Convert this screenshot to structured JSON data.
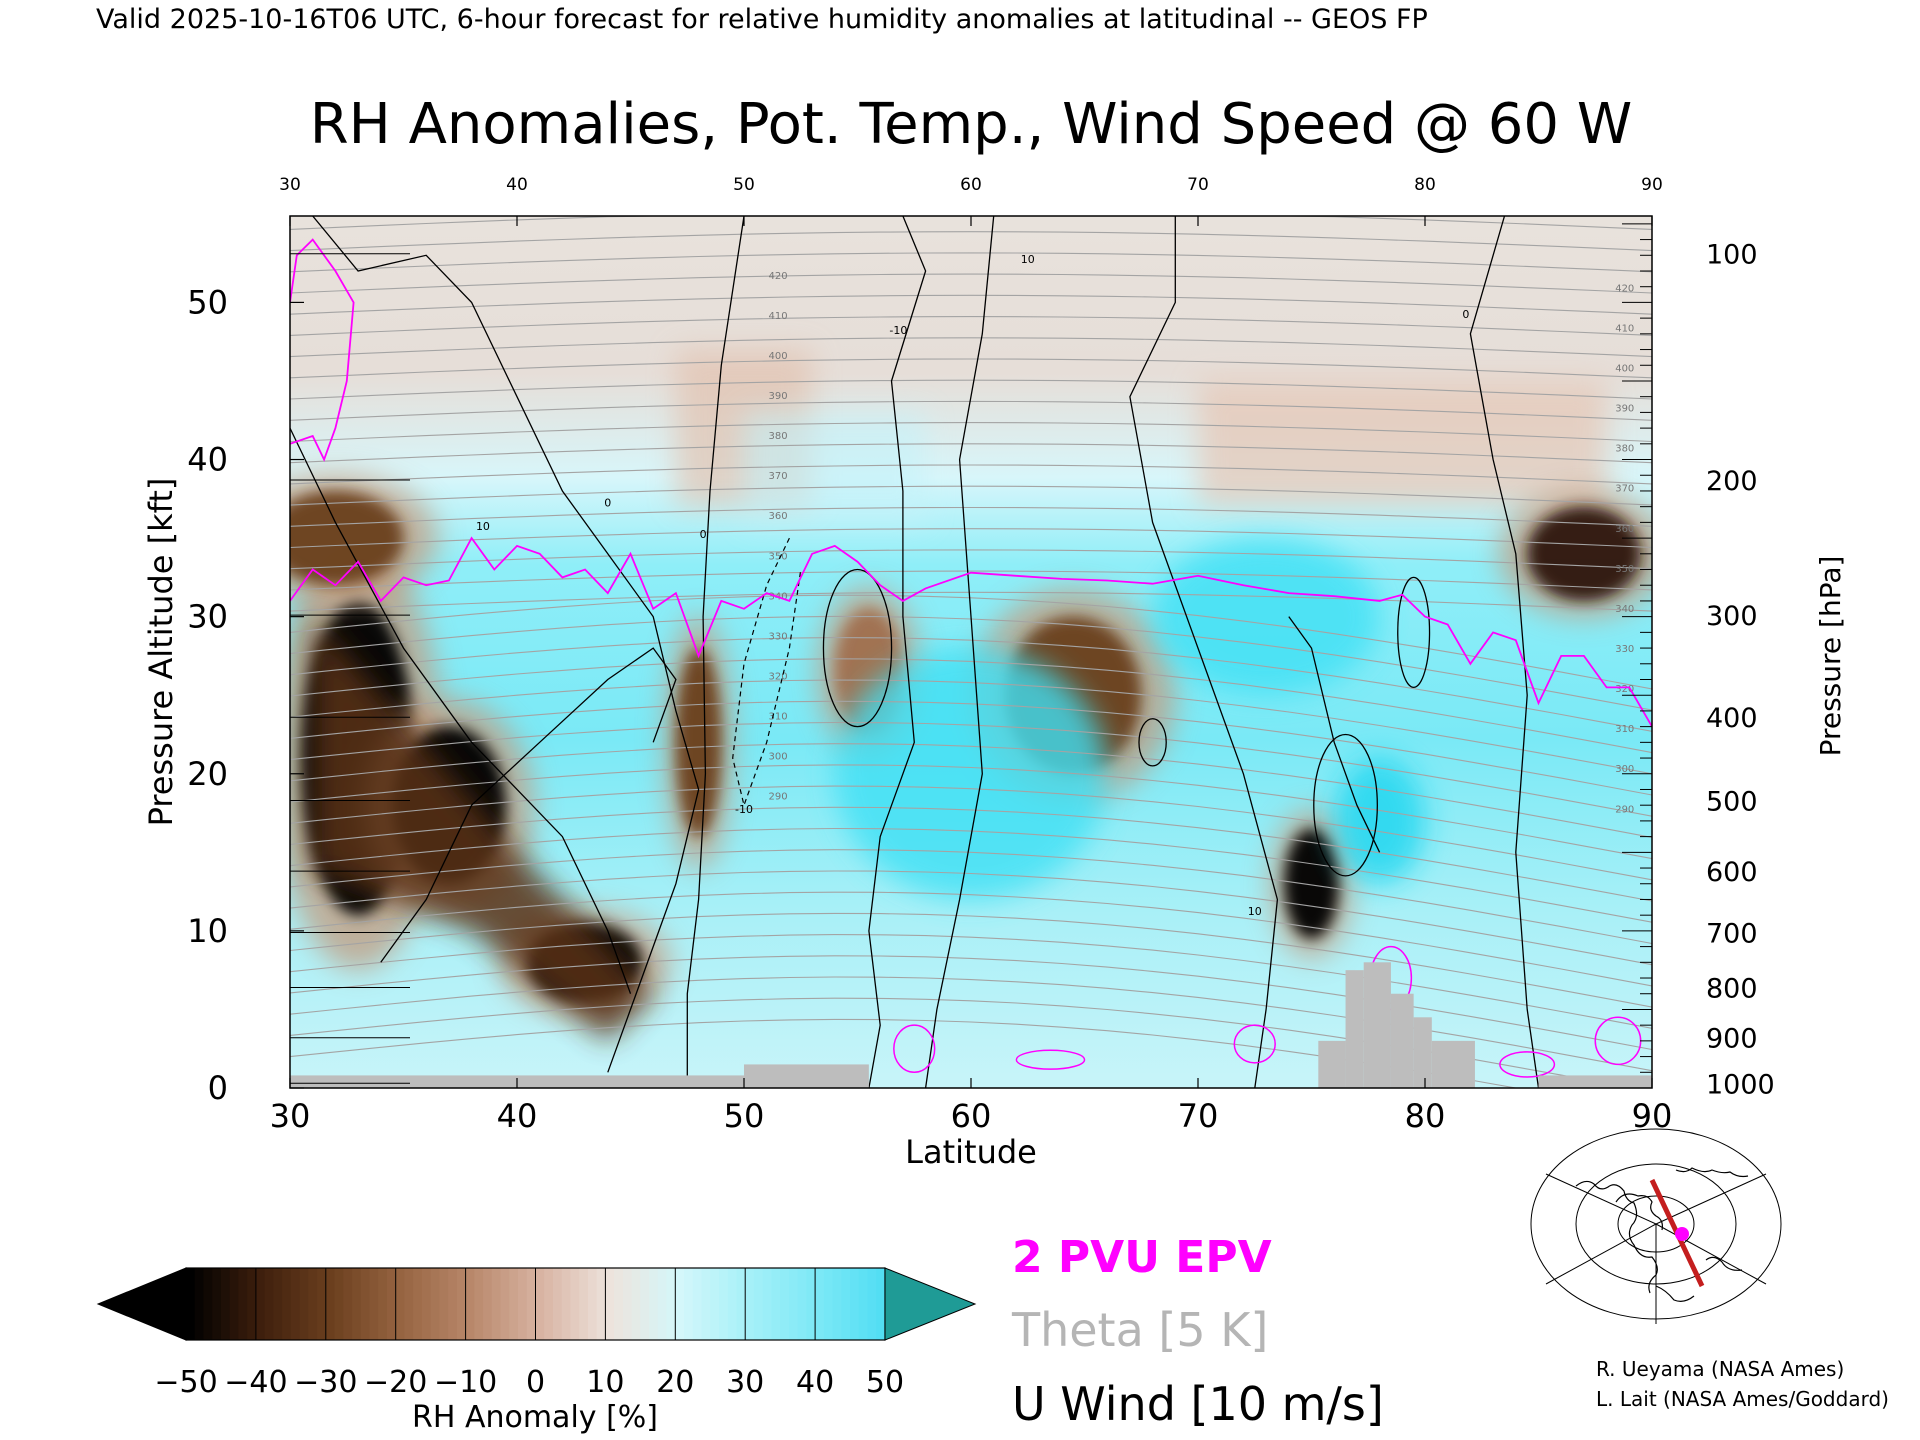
{
  "header": {
    "valid_line": "Valid 2025-10-16T06 UTC, 6-hour forecast for relative humidity anomalies at latitudinal -- GEOS FP"
  },
  "chart_data": {
    "type": "heatmap",
    "title": "RH Anomalies, Pot. Temp., Wind Speed @ 60 W",
    "xlabel": "Latitude",
    "ylabel_left": "Pressure Altitude [kft]",
    "ylabel_right": "Pressure [hPa]",
    "xlim": [
      30,
      90
    ],
    "ylim": [
      0,
      55.5
    ],
    "x_ticks": [
      30,
      40,
      50,
      60,
      70,
      80,
      90
    ],
    "y_ticks": [
      0,
      10,
      20,
      30,
      40,
      50
    ],
    "pressure_ticks": [
      {
        "hpa": "100",
        "kft": 53.1
      },
      {
        "hpa": "200",
        "kft": 38.7
      },
      {
        "hpa": "300",
        "kft": 30.1
      },
      {
        "hpa": "400",
        "kft": 23.6
      },
      {
        "hpa": "500",
        "kft": 18.3
      },
      {
        "hpa": "600",
        "kft": 13.8
      },
      {
        "hpa": "700",
        "kft": 9.9
      },
      {
        "hpa": "800",
        "kft": 6.4
      },
      {
        "hpa": "900",
        "kft": 3.2
      },
      {
        "hpa": "1000",
        "kft": 0.3
      }
    ],
    "colorbar": {
      "label": "RH Anomaly [%]",
      "tick_labels": [
        "-50",
        "-40",
        "-30",
        "-20",
        "-10",
        "0",
        "10",
        "20",
        "30",
        "40",
        "50"
      ],
      "colors": [
        "#000000",
        "#3e1f0d",
        "#6b3f1e",
        "#966441",
        "#b8876a",
        "#d8b3a2",
        "#ede3dc",
        "#d4f7fa",
        "#a5f0f8",
        "#7be8f6",
        "#4ddcf3",
        "#1ab9e0",
        "#0b87ad",
        "#1f9b96"
      ]
    },
    "legend": [
      {
        "label": "2 PVU EPV",
        "color": "#ff00ff"
      },
      {
        "label": "Theta [5 K]",
        "color": "#b5b5b5"
      },
      {
        "label": "U Wind [10 m/s]",
        "color": "#000000"
      }
    ],
    "theta_contour_labels": [
      "420",
      "410",
      "400",
      "390",
      "380",
      "370",
      "360",
      "350",
      "340",
      "330",
      "320",
      "310",
      "300",
      "290"
    ],
    "wind_contour_labels": [
      "10",
      "0",
      "-10"
    ],
    "pv_2pvu_line": [
      [
        30,
        31
      ],
      [
        31,
        33
      ],
      [
        32,
        32
      ],
      [
        33,
        33.5
      ],
      [
        34,
        31
      ],
      [
        35,
        32.5
      ],
      [
        36,
        32
      ],
      [
        37,
        32.3
      ],
      [
        38,
        35
      ],
      [
        39,
        33
      ],
      [
        40,
        34.5
      ],
      [
        41,
        34
      ],
      [
        42,
        32.5
      ],
      [
        43,
        33
      ],
      [
        44,
        31.5
      ],
      [
        45,
        34
      ],
      [
        46,
        30.5
      ],
      [
        47,
        31.5
      ],
      [
        48,
        27.5
      ],
      [
        49,
        31
      ],
      [
        50,
        30.5
      ],
      [
        51,
        31.5
      ],
      [
        52,
        31
      ],
      [
        53,
        34
      ],
      [
        54,
        34.5
      ],
      [
        55,
        33.5
      ],
      [
        56,
        32
      ],
      [
        57,
        31
      ],
      [
        58,
        31.8
      ],
      [
        60,
        32.8
      ],
      [
        62,
        32.6
      ],
      [
        64,
        32.4
      ],
      [
        66,
        32.3
      ],
      [
        68,
        32.1
      ],
      [
        70,
        32.6
      ],
      [
        72,
        32
      ],
      [
        74,
        31.5
      ],
      [
        76,
        31.3
      ],
      [
        78,
        31
      ],
      [
        79,
        31.4
      ],
      [
        80,
        30
      ],
      [
        81,
        29.5
      ],
      [
        82,
        27
      ],
      [
        83,
        29
      ],
      [
        84,
        28.5
      ],
      [
        85,
        24.5
      ],
      [
        86,
        27.5
      ],
      [
        87,
        27.5
      ],
      [
        88,
        25.5
      ],
      [
        89,
        25.5
      ],
      [
        90,
        23
      ]
    ],
    "pv_2pvu_upper_left": [
      [
        30,
        41
      ],
      [
        31,
        41.5
      ],
      [
        31.5,
        40
      ],
      [
        32,
        42
      ],
      [
        32.5,
        45
      ],
      [
        32.8,
        50
      ],
      [
        32,
        52
      ],
      [
        31,
        54
      ],
      [
        30.3,
        53
      ],
      [
        30,
        50
      ]
    ],
    "surface_mask": [
      {
        "lat": [
          30,
          50
        ],
        "kft": 0.8
      },
      {
        "lat": [
          50,
          55.5
        ],
        "kft": 1.5
      },
      {
        "lat": [
          75.3,
          76.5
        ],
        "kft": 3.0
      },
      {
        "lat": [
          76.5,
          77.3
        ],
        "kft": 7.5
      },
      {
        "lat": [
          77.3,
          78.5
        ],
        "kft": 8.0
      },
      {
        "lat": [
          78.5,
          79.5
        ],
        "kft": 6.0
      },
      {
        "lat": [
          79.5,
          80.3
        ],
        "kft": 4.5
      },
      {
        "lat": [
          80.3,
          82.2
        ],
        "kft": 3.0
      },
      {
        "lat": [
          85,
          90
        ],
        "kft": 0.8
      }
    ],
    "rh_anomaly_features": [
      {
        "kind": "dry",
        "lat": 33,
        "kft": 21,
        "rx": 2.5,
        "ry": 10,
        "value": -50
      },
      {
        "kind": "dry",
        "lat": 37,
        "kft": 18,
        "rx": 2.5,
        "ry": 5,
        "value": -45
      },
      {
        "kind": "dry",
        "lat": 43,
        "kft": 8,
        "rx": 2.5,
        "ry": 2.5,
        "value": -50
      },
      {
        "kind": "dry",
        "lat": 32,
        "kft": 35,
        "rx": 3,
        "ry": 3,
        "value": -35
      },
      {
        "kind": "dry",
        "lat": 48,
        "kft": 22,
        "rx": 1,
        "ry": 6,
        "value": -30
      },
      {
        "kind": "dry",
        "lat": 55.5,
        "kft": 26.5,
        "rx": 1.5,
        "ry": 4,
        "value": -25
      },
      {
        "kind": "dry",
        "lat": 64.5,
        "kft": 25,
        "rx": 3,
        "ry": 5,
        "value": -30
      },
      {
        "kind": "dry",
        "lat": 75,
        "kft": 13,
        "rx": 1.2,
        "ry": 3.5,
        "value": -45
      },
      {
        "kind": "dry",
        "lat": 87,
        "kft": 34,
        "rx": 2.5,
        "ry": 3,
        "value": -40
      },
      {
        "kind": "moist",
        "lat": 60,
        "kft": 20,
        "rx": 6,
        "ry": 8,
        "value": 30
      },
      {
        "kind": "moist",
        "lat": 73,
        "kft": 30,
        "rx": 5,
        "ry": 5,
        "value": 30
      },
      {
        "kind": "moist",
        "lat": 78,
        "kft": 17,
        "rx": 2,
        "ry": 4,
        "value": 35
      }
    ]
  },
  "inset_map": {
    "description_icon": "polar-projection-map-icon",
    "line_color": "#c41e1e",
    "marker_color": "#ff00ff"
  },
  "credits": {
    "line1": "R. Ueyama (NASA Ames)",
    "line2": "L. Lait (NASA Ames/Goddard)"
  }
}
